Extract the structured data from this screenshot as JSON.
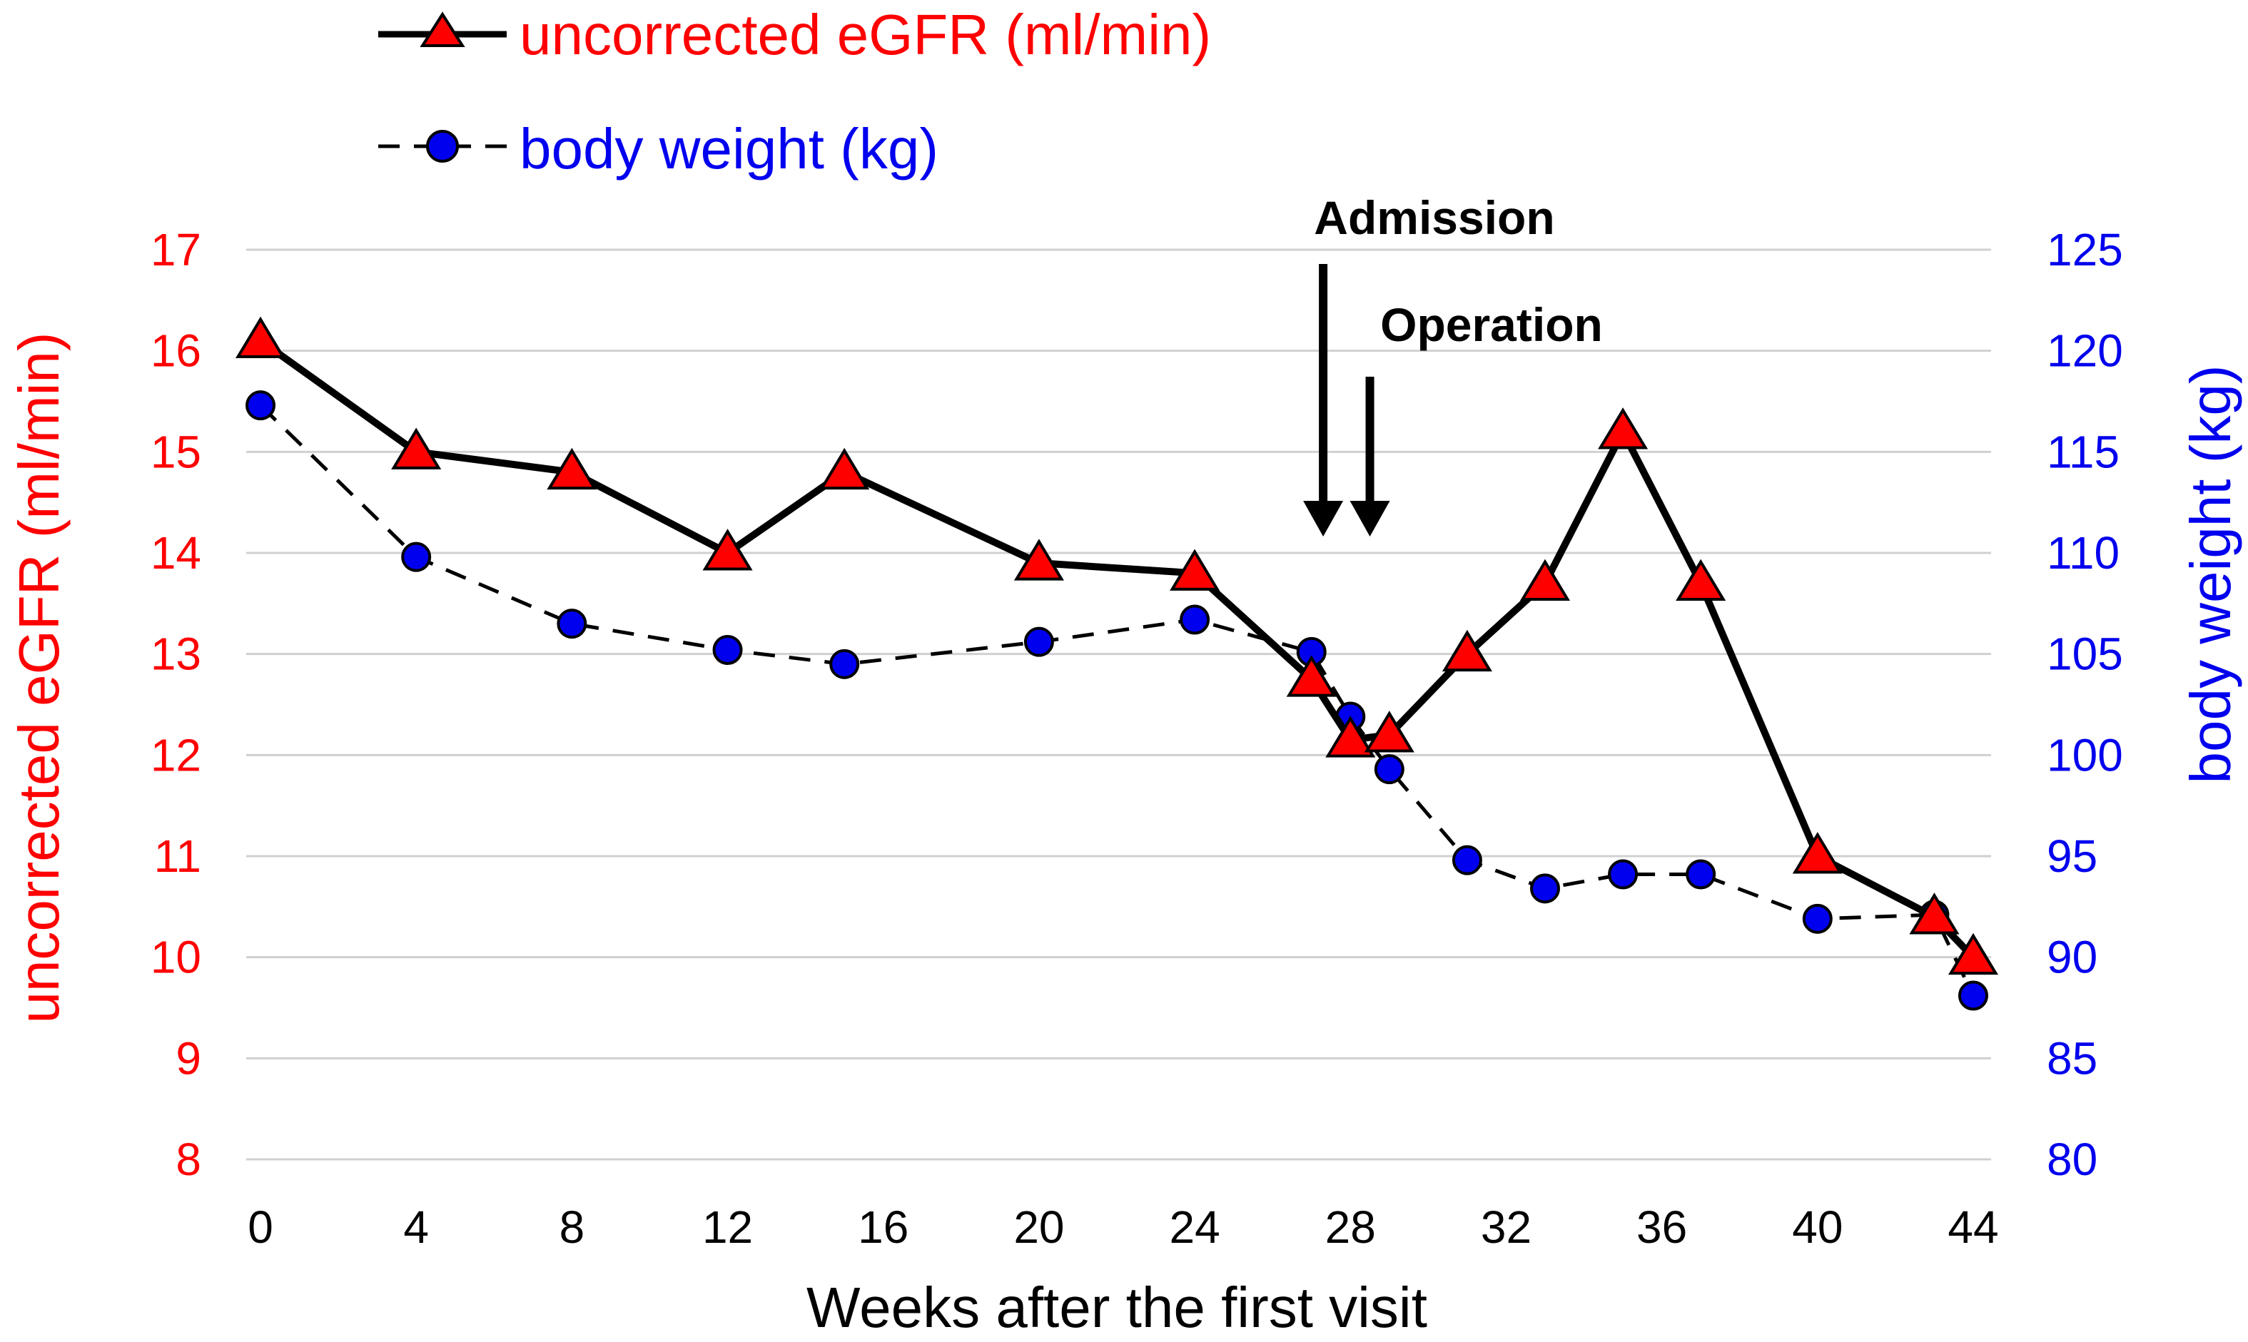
{
  "chart_data": {
    "type": "line",
    "xlabel": "Weeks after the first visit",
    "ylabel_left": "uncorrected eGFR (ml/min)",
    "ylabel_right": "body weight (kg)",
    "x_ticks": [
      "0",
      "4",
      "8",
      "12",
      "16",
      "20",
      "24",
      "28",
      "32",
      "36",
      "40",
      "44"
    ],
    "y_left_ticks": [
      "8",
      "9",
      "10",
      "11",
      "12",
      "13",
      "14",
      "15",
      "16",
      "17"
    ],
    "y_right_ticks": [
      "80",
      "85",
      "90",
      "95",
      "100",
      "105",
      "110",
      "115",
      "120",
      "125"
    ],
    "xlim": [
      0,
      44
    ],
    "ylim_left": [
      8,
      17
    ],
    "ylim_right": [
      80,
      125
    ],
    "grid": true,
    "legend_position": "top-left",
    "colors": {
      "egfr": "#ff0000",
      "weight": "#0000ee",
      "line": "#000000"
    },
    "series": [
      {
        "name": "uncorrected eGFR (ml/min)",
        "axis": "left",
        "marker": "triangle",
        "line_style": "solid",
        "x": [
          0,
          4,
          8,
          12,
          15,
          20,
          24,
          27,
          28,
          29,
          31,
          33,
          35,
          37,
          40,
          43,
          44
        ],
        "values": [
          16.1,
          15.0,
          14.8,
          14.0,
          14.8,
          13.9,
          13.8,
          12.75,
          12.15,
          12.2,
          13.0,
          13.7,
          15.2,
          13.7,
          11.0,
          10.4,
          10.0
        ]
      },
      {
        "name": "body weight (kg)",
        "axis": "right",
        "marker": "circle",
        "line_style": "dashed",
        "x": [
          0,
          4,
          8,
          12,
          15,
          20,
          24,
          27,
          28,
          29,
          31,
          33,
          35,
          37,
          40,
          43,
          44
        ],
        "values": [
          117.3,
          109.8,
          106.5,
          105.2,
          104.5,
          105.6,
          106.7,
          105.1,
          101.9,
          99.3,
          94.8,
          93.4,
          94.1,
          94.1,
          91.9,
          92.1,
          88.1
        ]
      }
    ],
    "annotations": [
      {
        "label": "Admission",
        "x": 27.3
      },
      {
        "label": "Operation",
        "x": 28.5
      }
    ]
  }
}
